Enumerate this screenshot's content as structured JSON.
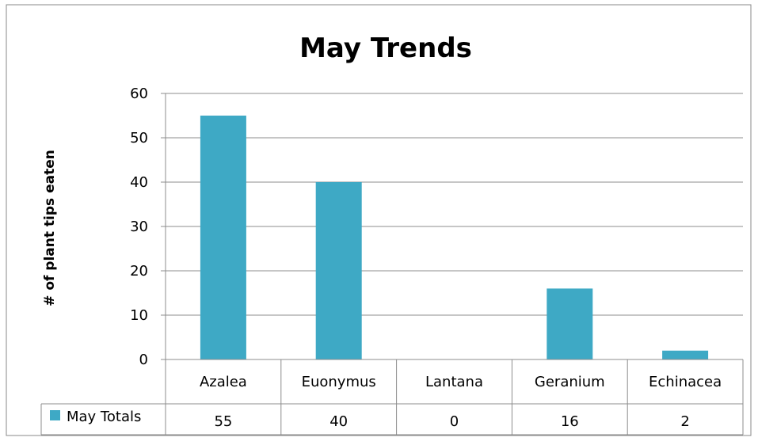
{
  "chart_data": {
    "type": "bar",
    "title": "May Trends",
    "ylabel": "# of plant tips eaten",
    "xlabel": "",
    "ylim": [
      0,
      60
    ],
    "yticks": [
      0,
      10,
      20,
      30,
      40,
      50,
      60
    ],
    "categories": [
      "Azalea",
      "Euonymus",
      "Lantana",
      "Geranium",
      "Echinacea"
    ],
    "series": [
      {
        "name": "May Totals",
        "values": [
          55,
          40,
          0,
          16,
          2
        ],
        "color": "#3EA9C5"
      }
    ],
    "grid": true,
    "legend": "data-table"
  }
}
